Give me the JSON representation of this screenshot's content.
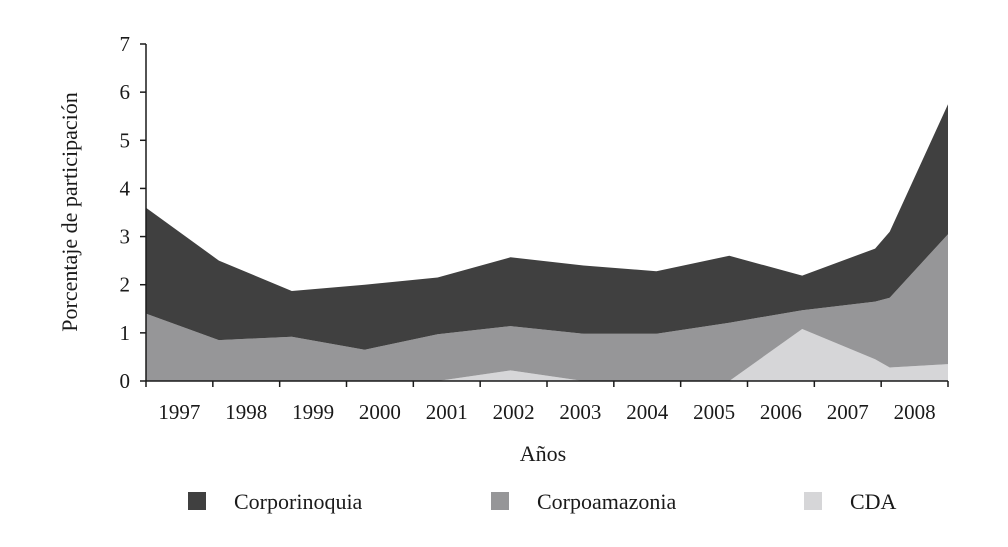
{
  "chart_data": {
    "type": "area",
    "stacked": true,
    "title": "",
    "xlabel": "Años",
    "ylabel": "Porcentaje de participación",
    "categories": [
      "1997",
      "1998",
      "1999",
      "2000",
      "2001",
      "2002",
      "2003",
      "2004",
      "2005",
      "2006",
      "2007",
      "2008"
    ],
    "ylim": [
      0,
      7
    ],
    "yticks": [
      "0",
      "1",
      "2",
      "3",
      "4",
      "5",
      "6",
      "7"
    ],
    "grid": false,
    "legend_position": "bottom",
    "x": [
      1997,
      1998,
      1999,
      2000,
      2001,
      2002,
      2003,
      2004,
      2005,
      2006,
      2007,
      2007.2,
      2008
    ],
    "series": [
      {
        "name": "CDA",
        "color": "#d6d6d8",
        "values": [
          0,
          0,
          0,
          0,
          0,
          0.22,
          0,
          0,
          0,
          1.08,
          0.45,
          0.28,
          0.35
        ]
      },
      {
        "name": "Corpoamazonia",
        "color": "#969698",
        "values": [
          1.4,
          0.85,
          0.92,
          0.65,
          0.97,
          0.92,
          0.98,
          0.98,
          1.21,
          0.39,
          1.2,
          1.45,
          2.7
        ]
      },
      {
        "name": "Corporinoquia",
        "color": "#404040",
        "values": [
          2.2,
          1.65,
          0.95,
          1.35,
          1.18,
          1.43,
          1.42,
          1.3,
          1.39,
          0.72,
          1.1,
          1.37,
          2.7
        ]
      }
    ]
  },
  "legend": [
    {
      "label": "Corporinoquia",
      "color": "#404040"
    },
    {
      "label": "Corpoamazonia",
      "color": "#969698"
    },
    {
      "label": "CDA",
      "color": "#d6d6d8"
    }
  ]
}
